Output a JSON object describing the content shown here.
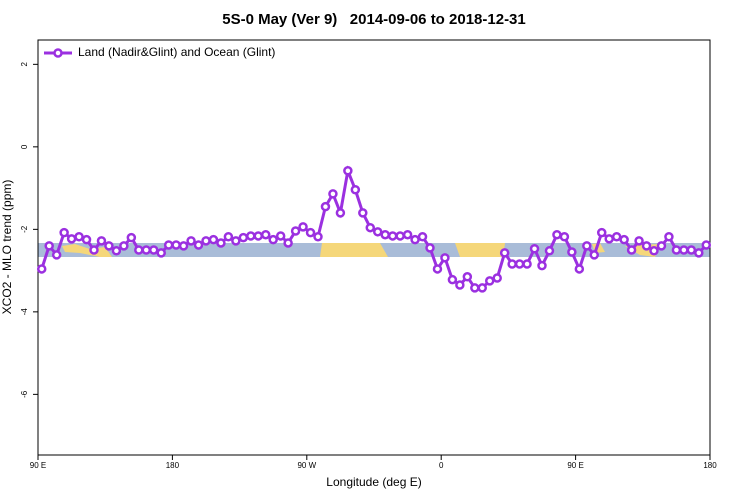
{
  "chart_data": {
    "type": "line",
    "title": "5S-0 May (Ver 9)   2014-09-06 to 2018-12-31",
    "xlabel": "Longitude (deg E)",
    "ylabel": "XCO2 - MLO trend (ppm)",
    "xlim": [
      90,
      540
    ],
    "xticks": [
      {
        "value": 90,
        "label": "90 E"
      },
      {
        "value": 180,
        "label": "180"
      },
      {
        "value": 270,
        "label": "90 W"
      },
      {
        "value": 360,
        "label": "0"
      },
      {
        "value": 450,
        "label": "90 E"
      },
      {
        "value": 540,
        "label": "180"
      }
    ],
    "ylim": [
      -7.47,
      2.59
    ],
    "yticks": [
      2,
      0,
      -2,
      -4,
      -6
    ],
    "legend": "top-left",
    "x": [
      92.5,
      97.5,
      102.5,
      107.5,
      112.5,
      117.5,
      122.5,
      127.5,
      132.5,
      137.5,
      142.5,
      147.5,
      152.5,
      157.5,
      162.5,
      167.5,
      172.5,
      177.5,
      182.5,
      187.5,
      192.5,
      197.5,
      202.5,
      207.5,
      212.5,
      217.5,
      222.5,
      227.5,
      232.5,
      237.5,
      242.5,
      247.5,
      252.5,
      257.5,
      262.5,
      267.5,
      272.5,
      277.5,
      282.5,
      287.5,
      292.5,
      297.5,
      302.5,
      307.5,
      312.5,
      317.5,
      322.5,
      327.5,
      332.5,
      337.5,
      342.5,
      347.5,
      352.5,
      357.5,
      362.5,
      367.5,
      372.5,
      377.5,
      382.5,
      387.5,
      392.5,
      397.5,
      402.5,
      407.5,
      412.5,
      417.5,
      422.5,
      427.5,
      432.5,
      437.5,
      442.5,
      447.5,
      452.5,
      457.5,
      462.5,
      467.5,
      472.5,
      477.5,
      482.5,
      487.5,
      492.5,
      497.5,
      502.5,
      507.5,
      512.5,
      517.5,
      522.5,
      527.5,
      532.5,
      537.5
    ],
    "series": [
      {
        "name": "Land (Nadir&Glint) and Ocean (Glint)",
        "color": "#9b30e0",
        "values": [
          -2.96,
          -2.4,
          -2.62,
          -2.08,
          -2.23,
          -2.18,
          -2.25,
          -2.5,
          -2.28,
          -2.4,
          -2.52,
          -2.4,
          -2.2,
          -2.5,
          -2.5,
          -2.5,
          -2.57,
          -2.38,
          -2.38,
          -2.4,
          -2.28,
          -2.38,
          -2.28,
          -2.25,
          -2.33,
          -2.18,
          -2.28,
          -2.2,
          -2.16,
          -2.16,
          -2.13,
          -2.25,
          -2.16,
          -2.33,
          -2.04,
          -1.94,
          -2.08,
          -2.18,
          -1.45,
          -1.14,
          -1.6,
          -0.58,
          -1.04,
          -1.6,
          -1.96,
          -2.06,
          -2.13,
          -2.16,
          -2.16,
          -2.13,
          -2.25,
          -2.18,
          -2.45,
          -2.96,
          -2.69,
          -3.22,
          -3.35,
          -3.15,
          -3.42,
          -3.42,
          -3.25,
          -3.18,
          -2.57,
          -2.84,
          -2.84,
          -2.84,
          -2.47,
          -2.88,
          -2.52,
          -2.13,
          -2.18,
          -2.55,
          -2.96,
          -2.4,
          -2.62,
          -2.08,
          -2.23,
          -2.18,
          -2.25,
          -2.5,
          -2.28,
          -2.4,
          -2.52,
          -2.4,
          -2.18,
          -2.5,
          -2.5,
          -2.5,
          -2.57,
          -2.38
        ]
      }
    ]
  }
}
